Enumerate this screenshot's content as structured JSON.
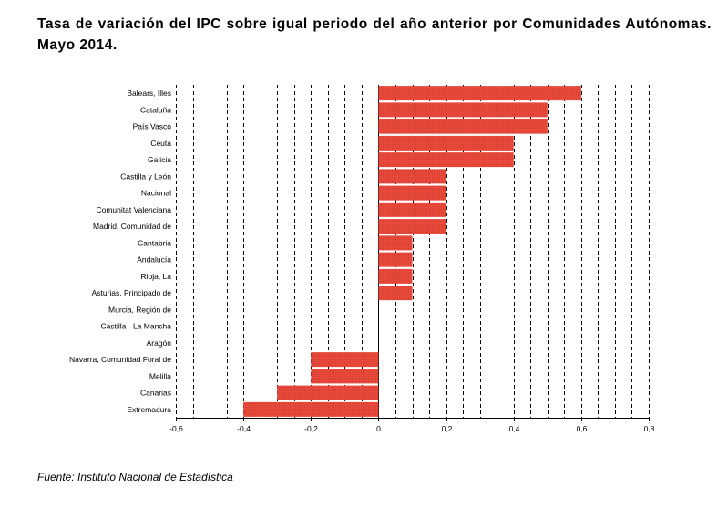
{
  "title": "Tasa de variación del IPC sobre igual periodo del año anterior por Comunidades Autónomas. Mayo 2014.",
  "source": "Fuente: Instituto Nacional de Estadística",
  "colors": {
    "bar": "#e8493a",
    "bar_edge": "#c0392b",
    "grid": "#000000"
  },
  "chart_data": {
    "type": "bar",
    "orientation": "horizontal",
    "title": "Tasa de variación del IPC sobre igual periodo del año anterior por Comunidades Autónomas. Mayo 2014.",
    "categories": [
      "Balears, Illes",
      "Cataluña",
      "País Vasco",
      "Ceuta",
      "Galicia",
      "Castilla y León",
      "Nacional",
      "Comunitat Valenciana",
      "Madrid, Comunidad de",
      "Cantabria",
      "Andalucía",
      "Rioja, La",
      "Asturias, Principado de",
      "Murcia, Región de",
      "Castilla - La Mancha",
      "Aragón",
      "Navarra, Comunidad Foral de",
      "Melilla",
      "Canarias",
      "Extremadura"
    ],
    "values": [
      0.6,
      0.5,
      0.5,
      0.4,
      0.4,
      0.2,
      0.2,
      0.2,
      0.2,
      0.1,
      0.1,
      0.1,
      0.1,
      0,
      0,
      0,
      -0.2,
      -0.2,
      -0.3,
      -0.4
    ],
    "xlim": [
      -0.6,
      0.8
    ],
    "xticks": [
      -0.6,
      -0.4,
      -0.2,
      0,
      0.2,
      0.4,
      0.6,
      0.8
    ],
    "xtick_labels": [
      "-0,6",
      "-0,4",
      "-0,2",
      "0",
      "0,2",
      "0,4",
      "0,6",
      "0,8"
    ],
    "grid": "vertical dashed",
    "xlabel": "",
    "ylabel": ""
  }
}
